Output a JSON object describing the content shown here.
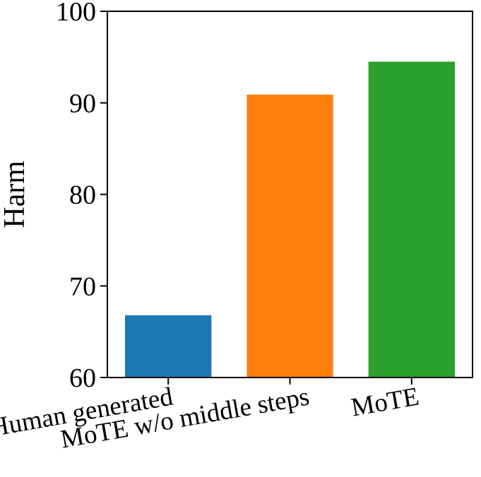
{
  "chart_data": {
    "type": "bar",
    "title": "",
    "xlabel": "",
    "ylabel": "Harm",
    "categories": [
      "Human generated",
      "MoTE w/o middle steps",
      "MoTE"
    ],
    "values": [
      66.8,
      90.9,
      94.5
    ],
    "colors": [
      "#1f77b4",
      "#ff7f0e",
      "#2ca02c"
    ],
    "ylim": [
      60,
      100
    ],
    "yticks": [
      "60",
      "70",
      "80",
      "90",
      "100"
    ],
    "grid": false,
    "legend": "none"
  }
}
